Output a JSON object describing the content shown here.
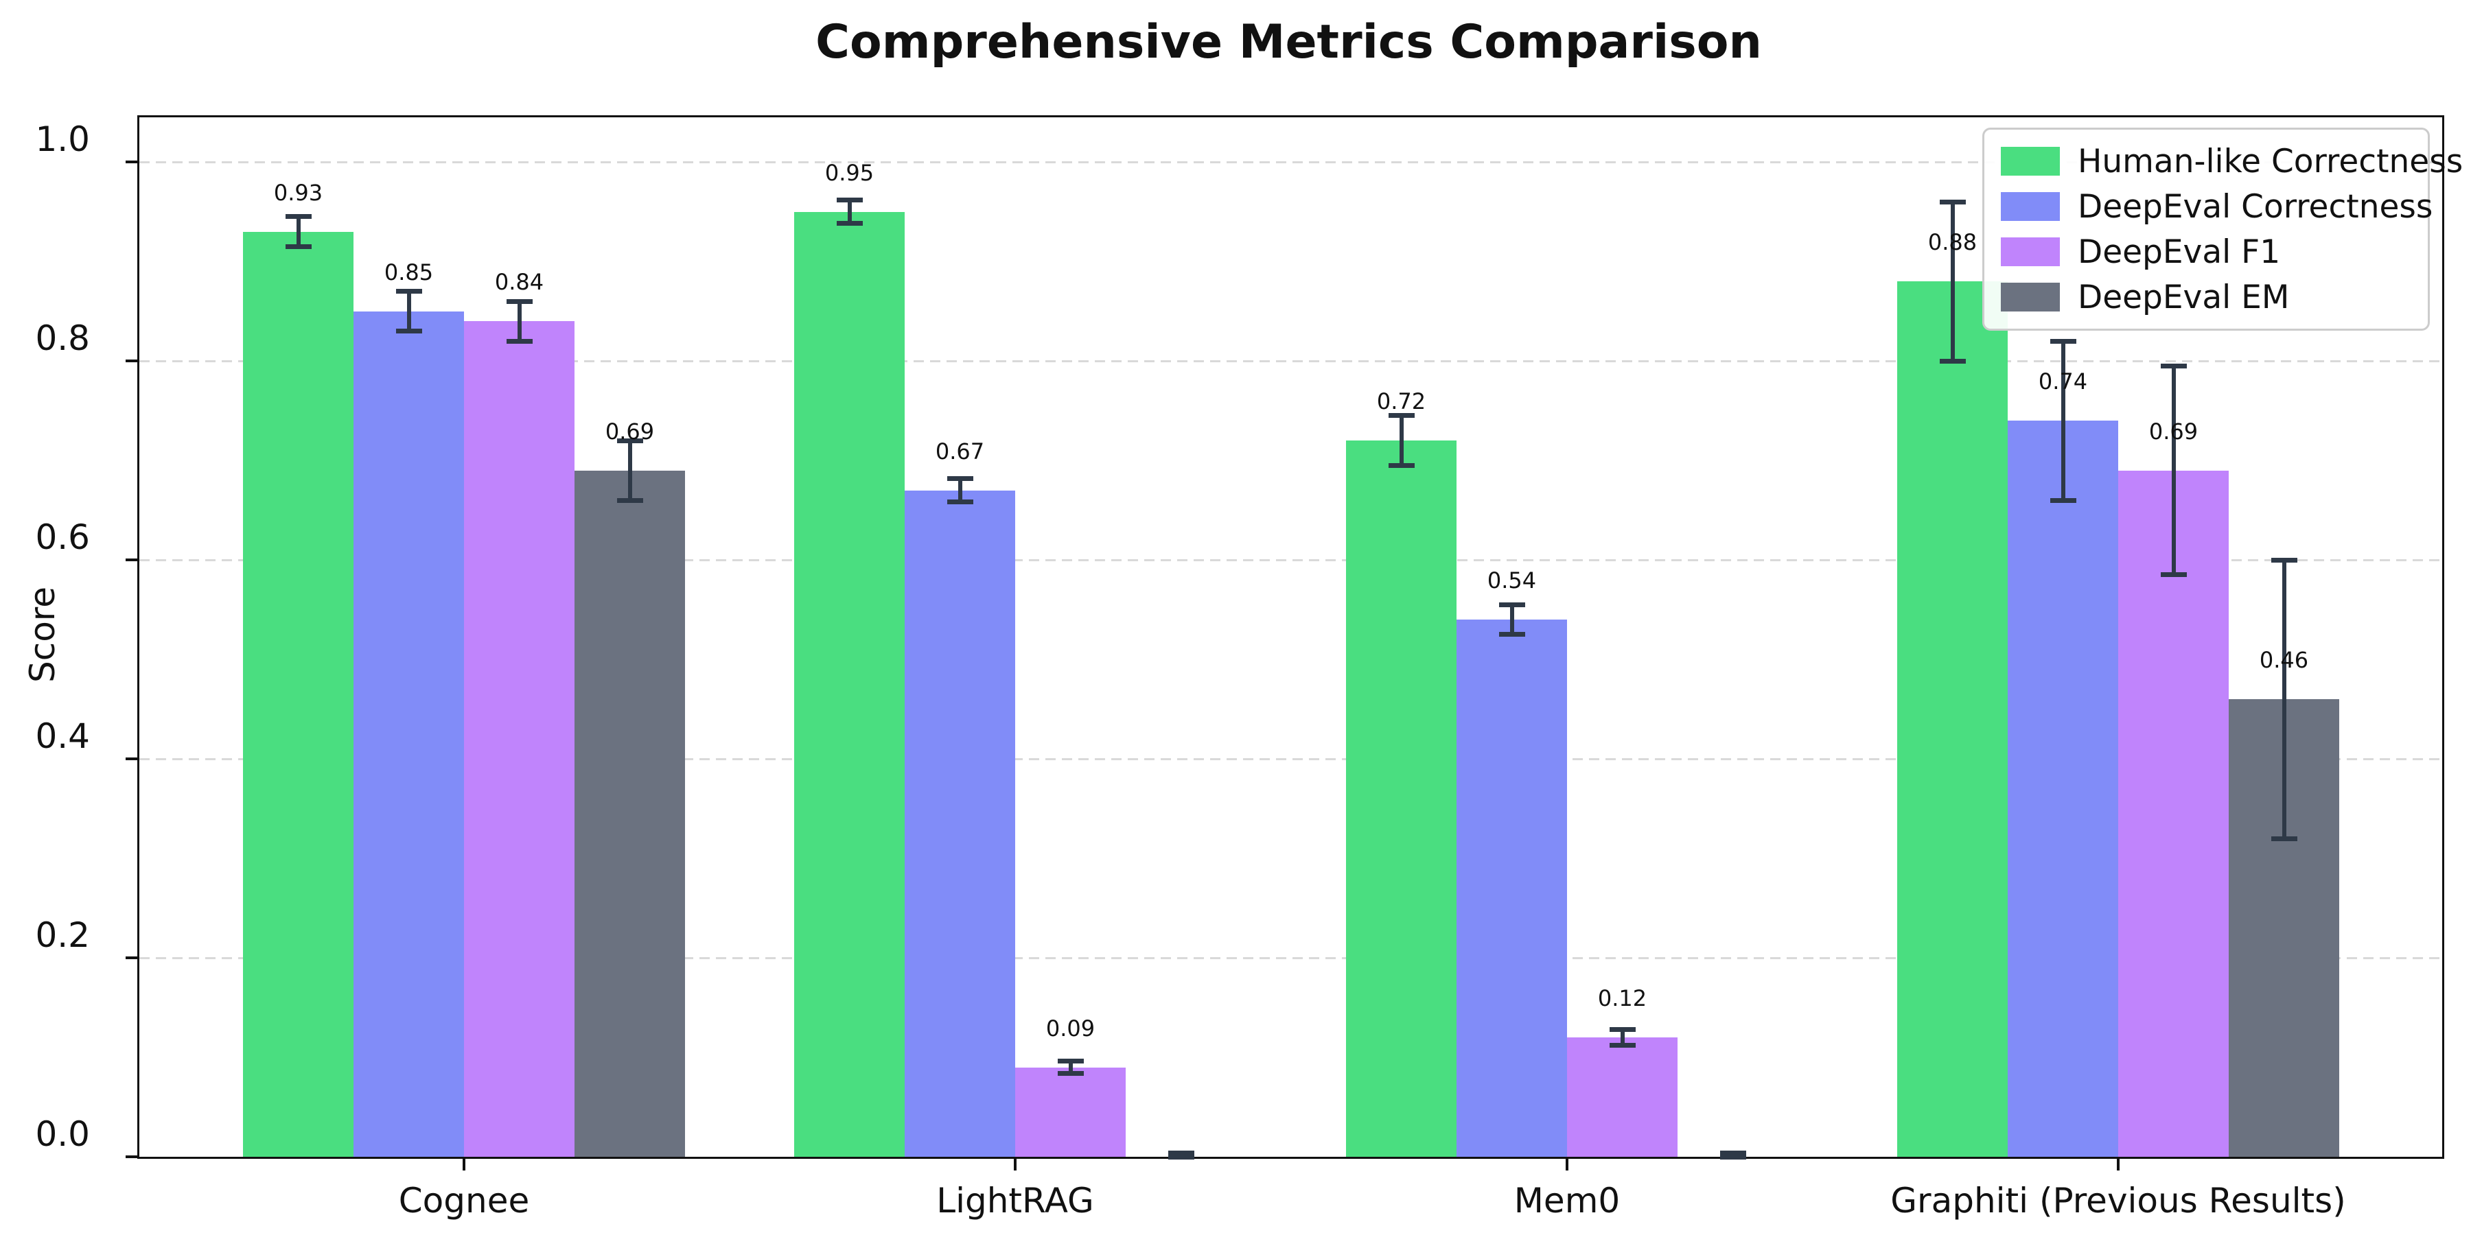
{
  "figure": {
    "title": "Comprehensive Metrics Comparison",
    "ylabel": "Score"
  },
  "chart_data": {
    "type": "bar",
    "title": "Comprehensive Metrics Comparison",
    "xlabel": "",
    "ylabel": "Score",
    "categories": [
      "Cognee",
      "LightRAG",
      "Mem0",
      "Graphiti (Previous Results)"
    ],
    "series": [
      {
        "name": "Human-like Correctness",
        "color": "#4ade80",
        "values": [
          0.93,
          0.95,
          0.72,
          0.88
        ],
        "errors": [
          0.015,
          0.012,
          0.025,
          0.08
        ],
        "labels": [
          "0.93",
          "0.95",
          "0.72",
          "0.88"
        ]
      },
      {
        "name": "DeepEval Correctness",
        "color": "#818cf8",
        "values": [
          0.85,
          0.67,
          0.54,
          0.74
        ],
        "errors": [
          0.02,
          0.012,
          0.015,
          0.08
        ],
        "labels": [
          "0.85",
          "0.67",
          "0.54",
          "0.74"
        ]
      },
      {
        "name": "DeepEval F1",
        "color": "#c084fc",
        "values": [
          0.84,
          0.09,
          0.12,
          0.69
        ],
        "errors": [
          0.02,
          0.006,
          0.008,
          0.105
        ],
        "labels": [
          "0.84",
          "0.09",
          "0.12",
          "0.69"
        ]
      },
      {
        "name": "DeepEval EM",
        "color": "#6b7280",
        "values": [
          0.69,
          0.0,
          0.0,
          0.46
        ],
        "errors": [
          0.03,
          0.004,
          0.004,
          0.14
        ],
        "labels": [
          "0.69",
          null,
          null,
          "0.46"
        ]
      }
    ],
    "y_ticks": [
      "0.0",
      "0.2",
      "0.4",
      "0.6",
      "0.8",
      "1.0"
    ],
    "ylim": [
      0.0,
      1.05
    ],
    "grid": "horizontal-dashed",
    "legend_position": "upper-right",
    "colors": {
      "error_bar": "#2e3947",
      "grid": "#d9d9d9",
      "spine": "#111111",
      "legend_border": "#cccccc"
    }
  }
}
